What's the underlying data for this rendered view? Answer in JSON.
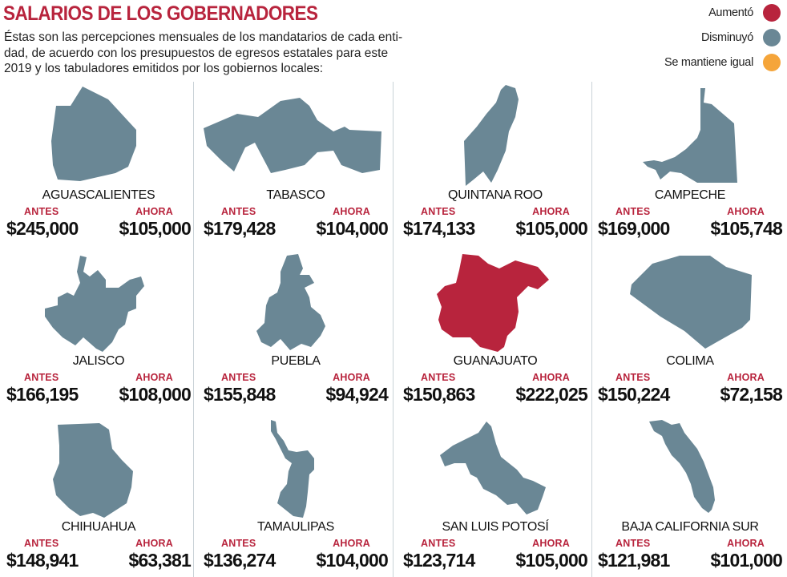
{
  "title": "SALARIOS DE LOS GOBERNADORES",
  "intro": [
    "Éstas son las percepciones mensuales de los mandatarios de cada enti-",
    "dad, de acuerdo con los presupuestos de egresos estatales para este",
    "2019 y los tabuladores emitidos por los gobiernos locales:"
  ],
  "legend": [
    {
      "label": "Aumentó",
      "color": "#b8243d"
    },
    {
      "label": "Disminuyó",
      "color": "#6a8795"
    },
    {
      "label": "Se mantiene igual",
      "color": "#f5a53a"
    }
  ],
  "labels": {
    "antes": "ANTES",
    "ahora": "AHORA"
  },
  "colors": {
    "decreased": "#6a8795",
    "increased": "#b8243d",
    "accent": "#b8243d"
  },
  "states": [
    {
      "name": "AGUASCALIENTES",
      "antes": "$245,000",
      "ahora": "$105,000",
      "status": "Disminuyó"
    },
    {
      "name": "TABASCO",
      "antes": "$179,428",
      "ahora": "$104,000",
      "status": "Disminuyó"
    },
    {
      "name": "QUINTANA ROO",
      "antes": "$174,133",
      "ahora": "$105,000",
      "status": "Disminuyó"
    },
    {
      "name": "CAMPECHE",
      "antes": "$169,000",
      "ahora": "$105,748",
      "status": "Disminuyó"
    },
    {
      "name": "JALISCO",
      "antes": "$166,195",
      "ahora": "$108,000",
      "status": "Disminuyó"
    },
    {
      "name": "PUEBLA",
      "antes": "$155,848",
      "ahora": "$94,924",
      "status": "Disminuyó"
    },
    {
      "name": "GUANAJUATO",
      "antes": "$150,863",
      "ahora": "$222,025",
      "status": "Aumentó"
    },
    {
      "name": "COLIMA",
      "antes": "$150,224",
      "ahora": "$72,158",
      "status": "Disminuyó"
    },
    {
      "name": "CHIHUAHUA",
      "antes": "$148,941",
      "ahora": "$63,381",
      "status": "Disminuyó"
    },
    {
      "name": "TAMAULIPAS",
      "antes": "$136,274",
      "ahora": "$104,000",
      "status": "Disminuyó"
    },
    {
      "name": "SAN LUIS POTOSÍ",
      "antes": "$123,714",
      "ahora": "$105,000",
      "status": "Disminuyó"
    },
    {
      "name": "BAJA CALIFORNIA SUR",
      "antes": "$121,981",
      "ahora": "$101,000",
      "status": "Disminuyó"
    }
  ]
}
